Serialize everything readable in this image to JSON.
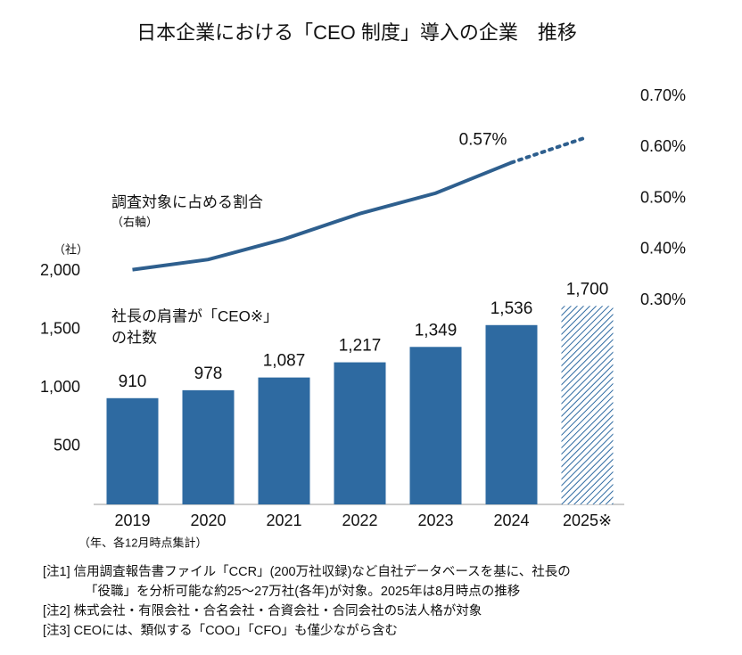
{
  "chart_data": {
    "type": "bar_line",
    "title": "日本企業における「CEO 制度」導入の企業　推移",
    "categories": [
      "2019",
      "2020",
      "2021",
      "2022",
      "2023",
      "2024",
      "2025※"
    ],
    "series": [
      {
        "color": "#2e6aa1",
        "values": [
          910,
          978,
          1087,
          1217,
          1349,
          1536,
          1700
        ],
        "value_labels": [
          "910",
          "978",
          "1,087",
          "1,217",
          "1,349",
          "1,536",
          "1,700"
        ],
        "hatched_last": true
      },
      {
        "color": "#2e5f8e",
        "axis": "y2",
        "values": [
          0.36,
          0.38,
          0.42,
          0.47,
          0.51,
          0.57,
          0.62
        ],
        "value_labels": [
          null,
          null,
          null,
          null,
          null,
          "0.57%",
          null
        ],
        "dotted_last_segment": true
      }
    ],
    "ylim": [
      0,
      2000
    ],
    "yticks": [
      500,
      {
        "value": 1000,
        "label": "1,000"
      },
      {
        "value": 1500,
        "label": "1,500"
      },
      {
        "value": 2000,
        "label": "2,000"
      }
    ],
    "y2lim": [
      0.3,
      0.7
    ],
    "y2ticks": [
      {
        "value": 0.3,
        "label": "0.30%"
      },
      {
        "value": 0.4,
        "label": "0.40%"
      },
      {
        "value": 0.5,
        "label": "0.50%"
      },
      {
        "value": 0.6,
        "label": "0.60%"
      },
      {
        "value": 0.7,
        "label": "0.70%"
      }
    ],
    "y_unit": "（社）",
    "x_note": "（年、各12月時点集計）",
    "annotations": [
      "調査対象に占める割合",
      "（右軸）",
      "社長の肩書が「CEO※」",
      "の社数"
    ],
    "notes": [
      "[注1]  信用調査報告書ファイル「CCR」(200万社収録)など自社データベースを基に、社長の",
      "「役職」を分析可能な約25～27万社(各年)が対象。2025年は8月時点の推移",
      "[注2]  株式会社・有限会社・合名会社・合資会社・合同会社の5法人格が対象",
      "[注3]  CEOには、類似する「COO」「CFO」も僅少ながら含む"
    ]
  }
}
